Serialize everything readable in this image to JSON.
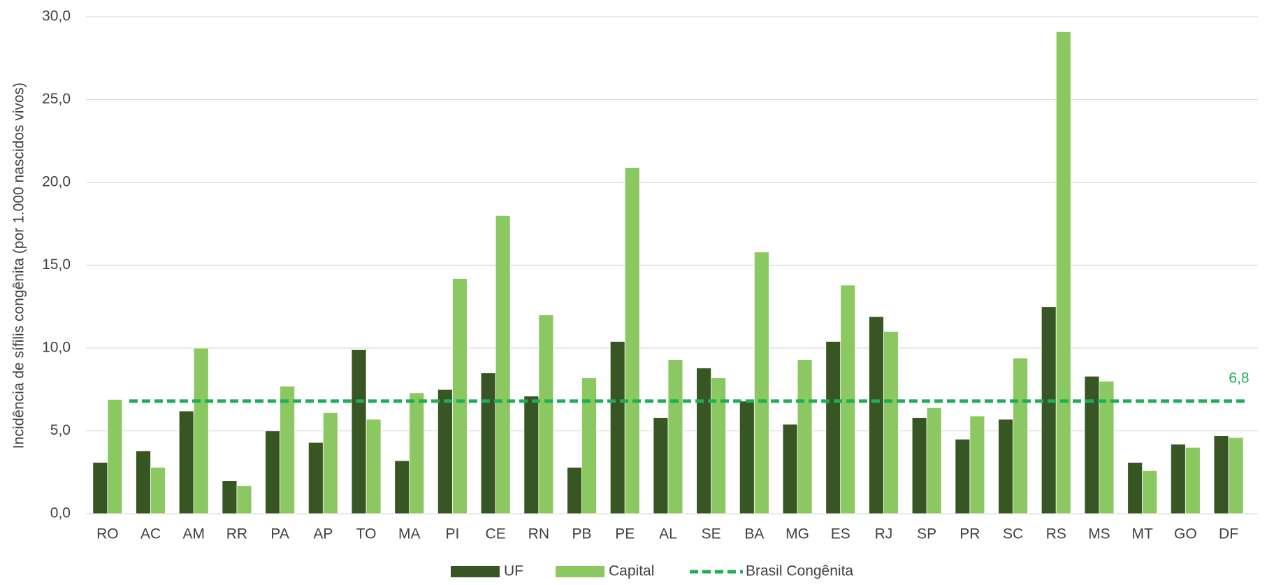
{
  "chart_data": {
    "type": "bar",
    "y_label": "Incidência de sífilis congênita (por 1.000 nascidos vivos)",
    "categories": [
      "RO",
      "AC",
      "AM",
      "RR",
      "PA",
      "AP",
      "TO",
      "MA",
      "PI",
      "CE",
      "RN",
      "PB",
      "PE",
      "AL",
      "SE",
      "BA",
      "MG",
      "ES",
      "RJ",
      "SP",
      "PR",
      "SC",
      "RS",
      "MS",
      "MT",
      "GO",
      "DF"
    ],
    "series": [
      {
        "name": "UF",
        "color": "#375623",
        "values": [
          3.1,
          3.8,
          6.2,
          2.0,
          5.0,
          4.3,
          9.9,
          3.2,
          7.5,
          8.5,
          7.1,
          2.8,
          10.4,
          5.8,
          8.8,
          6.8,
          5.4,
          10.4,
          11.9,
          5.8,
          4.5,
          5.7,
          12.5,
          8.3,
          3.1,
          4.2,
          4.7
        ]
      },
      {
        "name": "Capital",
        "color": "#8cc862",
        "values": [
          6.9,
          2.8,
          10.0,
          1.7,
          7.7,
          6.1,
          5.7,
          7.3,
          14.2,
          18.0,
          12.0,
          8.2,
          20.9,
          9.3,
          8.2,
          15.8,
          9.3,
          13.8,
          11.0,
          6.4,
          5.9,
          9.4,
          29.1,
          8.0,
          2.6,
          4.0,
          4.6
        ]
      }
    ],
    "reference_line": {
      "name": "Brasil Congênita",
      "value": 6.8,
      "value_label": "6,8",
      "color": "#1fae55"
    },
    "ylim": [
      0,
      30
    ],
    "yticks": [
      {
        "value": 0,
        "label": "0,0"
      },
      {
        "value": 5,
        "label": "5,0"
      },
      {
        "value": 10,
        "label": "10,0"
      },
      {
        "value": 15,
        "label": "15,0"
      },
      {
        "value": 20,
        "label": "20,0"
      },
      {
        "value": 25,
        "label": "25,0"
      },
      {
        "value": 30,
        "label": "30,0"
      }
    ],
    "grid": true,
    "legend": "bottom"
  }
}
